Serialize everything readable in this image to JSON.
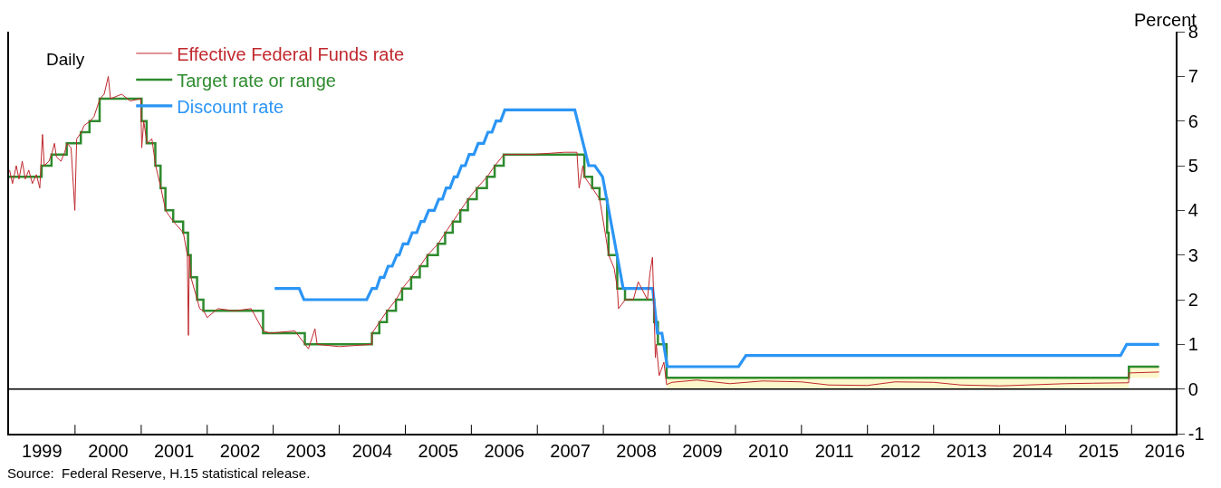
{
  "chart_data": {
    "type": "line",
    "ylabel": "Percent",
    "annotations": [
      "Daily",
      "Source:  Federal Reserve, H.15 statistical release."
    ],
    "xlim": [
      "1999-01-01",
      "2016-09-01"
    ],
    "xticks": [
      {
        "value": "1999-07-02",
        "label": "1999"
      },
      {
        "value": "2000-01-01",
        "label": null
      },
      {
        "value": "2000-07-02",
        "label": "2000"
      },
      {
        "value": "2001-01-01",
        "label": null
      },
      {
        "value": "2001-07-02",
        "label": "2001"
      },
      {
        "value": "2002-01-01",
        "label": null
      },
      {
        "value": "2002-07-02",
        "label": "2002"
      },
      {
        "value": "2003-01-01",
        "label": null
      },
      {
        "value": "2003-07-02",
        "label": "2003"
      },
      {
        "value": "2004-01-01",
        "label": null
      },
      {
        "value": "2004-07-02",
        "label": "2004"
      },
      {
        "value": "2005-01-01",
        "label": null
      },
      {
        "value": "2005-07-02",
        "label": "2005"
      },
      {
        "value": "2006-01-01",
        "label": null
      },
      {
        "value": "2006-07-02",
        "label": "2006"
      },
      {
        "value": "2007-01-01",
        "label": null
      },
      {
        "value": "2007-07-02",
        "label": "2007"
      },
      {
        "value": "2008-01-01",
        "label": null
      },
      {
        "value": "2008-07-02",
        "label": "2008"
      },
      {
        "value": "2009-01-01",
        "label": null
      },
      {
        "value": "2009-07-02",
        "label": "2009"
      },
      {
        "value": "2010-01-01",
        "label": null
      },
      {
        "value": "2010-07-02",
        "label": "2010"
      },
      {
        "value": "2011-01-01",
        "label": null
      },
      {
        "value": "2011-07-02",
        "label": "2011"
      },
      {
        "value": "2012-01-01",
        "label": null
      },
      {
        "value": "2012-07-02",
        "label": "2012"
      },
      {
        "value": "2013-01-01",
        "label": null
      },
      {
        "value": "2013-07-02",
        "label": "2013"
      },
      {
        "value": "2014-01-01",
        "label": null
      },
      {
        "value": "2014-07-02",
        "label": "2014"
      },
      {
        "value": "2015-01-01",
        "label": null
      },
      {
        "value": "2015-07-02",
        "label": "2015"
      },
      {
        "value": "2016-01-01",
        "label": null
      },
      {
        "value": "2016-07-02",
        "label": "2016"
      }
    ],
    "ylim": [
      -1,
      8
    ],
    "yticks": [
      -1,
      0,
      1,
      2,
      3,
      4,
      5,
      6,
      7,
      8
    ],
    "legend": "top left",
    "ref_lines": [
      {
        "axis": "y",
        "value": 0,
        "color": "#000000"
      }
    ],
    "series": [
      {
        "name": "Effective Federal Funds rate",
        "color": "#c0282d",
        "type": "line",
        "x": [
          "1999-01-04",
          "1999-01-20",
          "1999-02-10",
          "1999-02-25",
          "1999-03-15",
          "1999-04-01",
          "1999-04-20",
          "1999-05-10",
          "1999-06-01",
          "1999-06-20",
          "1999-07-05",
          "1999-07-15",
          "1999-08-10",
          "1999-08-27",
          "1999-09-09",
          "1999-09-20",
          "1999-10-15",
          "1999-11-05",
          "1999-11-18",
          "1999-12-10",
          "1999-12-31",
          "2000-01-10",
          "2000-02-05",
          "2000-02-20",
          "2000-03-25",
          "2000-04-15",
          "2000-05-18",
          "2000-06-10",
          "2000-07-03",
          "2000-07-15",
          "2000-09-15",
          "2000-11-01",
          "2000-12-29",
          "2001-01-04",
          "2001-01-15",
          "2001-02-02",
          "2001-03-01",
          "2001-03-22",
          "2001-04-20",
          "2001-05-16",
          "2001-06-01",
          "2001-06-28",
          "2001-08-22",
          "2001-09-13",
          "2001-09-19",
          "2001-09-24",
          "2001-10-03",
          "2001-11-07",
          "2001-11-20",
          "2001-12-12",
          "2002-01-01",
          "2002-03-01",
          "2002-06-01",
          "2002-09-01",
          "2002-11-07",
          "2002-12-15",
          "2003-05-01",
          "2003-06-26",
          "2003-07-15",
          "2003-08-20",
          "2003-09-01",
          "2004-01-01",
          "2004-06-30",
          "2004-07-01",
          "2004-08-11",
          "2004-09-22",
          "2004-11-11",
          "2004-12-15",
          "2005-02-03",
          "2005-03-23",
          "2005-05-04",
          "2005-07-01",
          "2005-08-10",
          "2005-09-21",
          "2005-11-02",
          "2005-12-14",
          "2006-02-01",
          "2006-03-29",
          "2006-05-11",
          "2006-06-30",
          "2006-12-01",
          "2007-06-01",
          "2007-08-08",
          "2007-08-20",
          "2007-09-10",
          "2007-09-19",
          "2007-11-01",
          "2007-12-12",
          "2008-01-23",
          "2008-01-31",
          "2008-03-01",
          "2008-03-19",
          "2008-03-25",
          "2008-05-01",
          "2008-06-15",
          "2008-07-12",
          "2008-09-01",
          "2008-09-15",
          "2008-09-29",
          "2008-10-15",
          "2008-10-20",
          "2008-11-05",
          "2008-12-01",
          "2008-12-16",
          "2009-01-15",
          "2009-06-01",
          "2009-12-01",
          "2010-06-01",
          "2011-01-01",
          "2011-06-01",
          "2012-01-01",
          "2012-06-01",
          "2013-01-01",
          "2013-06-01",
          "2014-01-01",
          "2014-06-01",
          "2015-01-01",
          "2015-06-01",
          "2015-12-16",
          "2015-12-17",
          "2016-06-01"
        ],
        "values": [
          4.9,
          4.6,
          5.0,
          4.7,
          5.1,
          4.7,
          4.9,
          4.6,
          4.8,
          4.5,
          5.7,
          5.0,
          5.1,
          5.3,
          5.5,
          5.2,
          5.1,
          5.3,
          5.5,
          5.4,
          4.0,
          5.6,
          5.75,
          5.9,
          6.0,
          6.1,
          6.5,
          6.6,
          7.0,
          6.5,
          6.6,
          6.45,
          6.5,
          5.4,
          6.0,
          5.5,
          5.6,
          5.0,
          4.5,
          4.0,
          3.9,
          3.75,
          3.5,
          3.0,
          1.2,
          3.0,
          2.5,
          2.0,
          1.8,
          1.75,
          1.6,
          1.8,
          1.75,
          1.8,
          1.3,
          1.25,
          1.3,
          1.0,
          0.9,
          1.35,
          1.0,
          0.95,
          1.0,
          1.25,
          1.5,
          1.75,
          2.0,
          2.25,
          2.5,
          2.75,
          3.0,
          3.25,
          3.5,
          3.75,
          4.0,
          4.25,
          4.5,
          4.75,
          5.0,
          5.25,
          5.25,
          5.3,
          5.3,
          4.5,
          5.0,
          4.75,
          4.5,
          4.25,
          3.2,
          3.0,
          2.7,
          2.25,
          1.8,
          2.0,
          2.0,
          2.4,
          2.0,
          2.6,
          2.95,
          0.7,
          1.0,
          0.3,
          0.6,
          0.1,
          0.15,
          0.2,
          0.12,
          0.18,
          0.16,
          0.09,
          0.08,
          0.16,
          0.15,
          0.09,
          0.07,
          0.09,
          0.12,
          0.13,
          0.14,
          0.36,
          0.38
        ]
      },
      {
        "name": "Target rate or range",
        "color": "#2e8b2e",
        "type": "step",
        "x": [
          "1999-01-01",
          "1999-06-30",
          "1999-08-24",
          "1999-11-16",
          "2000-02-02",
          "2000-03-21",
          "2000-05-16",
          "2001-01-03",
          "2001-01-31",
          "2001-03-20",
          "2001-04-18",
          "2001-05-15",
          "2001-06-27",
          "2001-08-21",
          "2001-09-17",
          "2001-10-02",
          "2001-11-06",
          "2001-12-11",
          "2002-11-06",
          "2003-06-25",
          "2004-06-30",
          "2004-08-10",
          "2004-09-21",
          "2004-11-10",
          "2004-12-14",
          "2005-02-02",
          "2005-03-22",
          "2005-05-03",
          "2005-06-30",
          "2005-08-09",
          "2005-09-20",
          "2005-11-01",
          "2005-12-13",
          "2006-01-31",
          "2006-03-28",
          "2006-05-10",
          "2006-06-29",
          "2007-09-18",
          "2007-10-31",
          "2007-12-11",
          "2008-01-22",
          "2008-01-30",
          "2008-03-18",
          "2008-04-30",
          "2008-10-08",
          "2008-10-29",
          "2008-12-16",
          "2015-12-17",
          "2016-06-01"
        ],
        "values": [
          4.75,
          5.0,
          5.25,
          5.5,
          5.75,
          6.0,
          6.5,
          6.0,
          5.5,
          5.0,
          4.5,
          4.0,
          3.75,
          3.5,
          3.0,
          2.5,
          2.0,
          1.75,
          1.25,
          1.0,
          1.25,
          1.5,
          1.75,
          2.0,
          2.25,
          2.5,
          2.75,
          3.0,
          3.25,
          3.5,
          3.75,
          4.0,
          4.25,
          4.5,
          4.75,
          5.0,
          5.25,
          4.75,
          4.5,
          4.25,
          3.5,
          3.0,
          2.25,
          2.0,
          1.5,
          1.0,
          0.25,
          0.5,
          0.5
        ],
        "lower": [
          null,
          null,
          null,
          null,
          null,
          null,
          null,
          null,
          null,
          null,
          null,
          null,
          null,
          null,
          null,
          null,
          null,
          null,
          null,
          null,
          null,
          null,
          null,
          null,
          null,
          null,
          null,
          null,
          null,
          null,
          null,
          null,
          null,
          null,
          null,
          null,
          null,
          null,
          null,
          null,
          null,
          null,
          null,
          null,
          null,
          null,
          0,
          0.25,
          0.25
        ],
        "upper": [
          null,
          null,
          null,
          null,
          null,
          null,
          null,
          null,
          null,
          null,
          null,
          null,
          null,
          null,
          null,
          null,
          null,
          null,
          null,
          null,
          null,
          null,
          null,
          null,
          null,
          null,
          null,
          null,
          null,
          null,
          null,
          null,
          null,
          null,
          null,
          null,
          null,
          null,
          null,
          null,
          null,
          null,
          null,
          null,
          null,
          null,
          0.25,
          0.5,
          0.5
        ]
      },
      {
        "name": "Discount rate",
        "color": "#2b95f5",
        "type": "line",
        "x": [
          "2003-01-09",
          "2003-05-25",
          "2003-06-20",
          "2004-06-01",
          "2004-07-01",
          "2004-07-25",
          "2004-08-15",
          "2004-09-05",
          "2004-09-28",
          "2004-10-20",
          "2004-11-15",
          "2004-11-28",
          "2004-12-20",
          "2005-01-15",
          "2005-02-08",
          "2005-03-05",
          "2005-03-28",
          "2005-04-15",
          "2005-05-10",
          "2005-06-10",
          "2005-07-05",
          "2005-07-25",
          "2005-08-15",
          "2005-09-05",
          "2005-09-28",
          "2005-10-15",
          "2005-11-08",
          "2005-11-28",
          "2005-12-20",
          "2006-01-15",
          "2006-02-08",
          "2006-03-10",
          "2006-04-03",
          "2006-04-25",
          "2006-05-18",
          "2006-06-12",
          "2006-07-05",
          "2007-07-27",
          "2007-10-12",
          "2007-11-15",
          "2007-12-28",
          "2008-04-20",
          "2008-09-30",
          "2008-10-26",
          "2008-11-20",
          "2008-12-20",
          "2010-01-18",
          "2010-02-28",
          "2015-11-01",
          "2015-12-05",
          "2016-06-01"
        ],
        "values": [
          2.25,
          2.25,
          2.0,
          2.0,
          2.25,
          2.25,
          2.5,
          2.5,
          2.75,
          2.75,
          3.0,
          3.0,
          3.25,
          3.25,
          3.5,
          3.5,
          3.75,
          3.75,
          4.0,
          4.0,
          4.25,
          4.25,
          4.5,
          4.5,
          4.75,
          4.75,
          5.0,
          5.0,
          5.25,
          5.25,
          5.5,
          5.5,
          5.75,
          5.75,
          6.0,
          6.0,
          6.25,
          6.25,
          5.0,
          5.0,
          4.75,
          2.25,
          2.25,
          1.25,
          1.25,
          0.5,
          0.5,
          0.75,
          0.75,
          1.0,
          1.0
        ]
      }
    ]
  }
}
